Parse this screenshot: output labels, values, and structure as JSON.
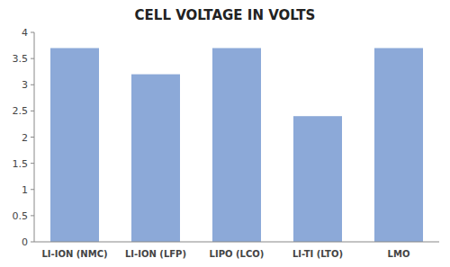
{
  "chart_data": {
    "type": "bar",
    "title": "CELL VOLTAGE IN VOLTS",
    "categories": [
      "LI-ION (NMC)",
      "LI-ION (LFP)",
      "LIPO (LCO)",
      "LI-TI (LTO)",
      "LMO"
    ],
    "values": [
      3.7,
      3.2,
      3.7,
      2.4,
      3.7
    ],
    "color": "#8ca9d8",
    "ylim": [
      0,
      4
    ],
    "yticks": [
      0,
      0.5,
      1,
      1.5,
      2,
      2.5,
      3,
      3.5,
      4
    ],
    "grid": false
  }
}
